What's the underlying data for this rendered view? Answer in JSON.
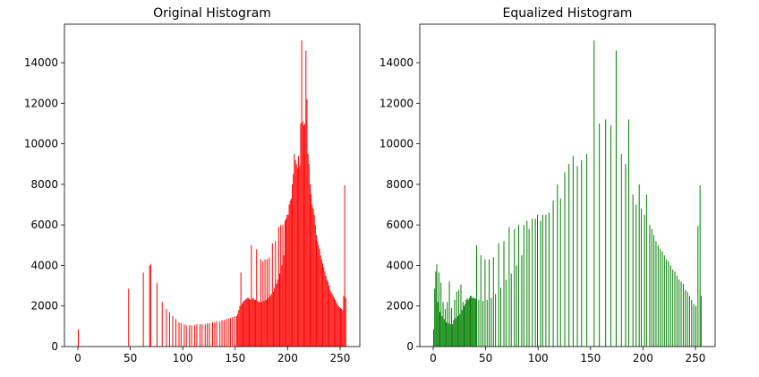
{
  "chart_data": [
    {
      "type": "bar",
      "title": "Original Histogram",
      "color": "red",
      "x": [
        0,
        48,
        62,
        68,
        69,
        75,
        80,
        84,
        87,
        90,
        93,
        96,
        98,
        101,
        103,
        106,
        108,
        111,
        113,
        116,
        118,
        121,
        123,
        125,
        128,
        130,
        132,
        135,
        137,
        139,
        141,
        143,
        145,
        147,
        149,
        151,
        152,
        153,
        154,
        155,
        156,
        157,
        158,
        159,
        160,
        161,
        162,
        163,
        164,
        165,
        166,
        167,
        168,
        169,
        170,
        171,
        172,
        173,
        174,
        175,
        176,
        177,
        178,
        179,
        180,
        181,
        182,
        183,
        184,
        185,
        186,
        187,
        188,
        189,
        190,
        191,
        192,
        193,
        194,
        195,
        196,
        197,
        198,
        199,
        200,
        201,
        202,
        203,
        204,
        205,
        206,
        207,
        208,
        209,
        210,
        211,
        212,
        213,
        214,
        215,
        216,
        217,
        218,
        219,
        220,
        221,
        222,
        223,
        224,
        225,
        226,
        227,
        228,
        229,
        230,
        231,
        232,
        233,
        234,
        235,
        236,
        237,
        238,
        239,
        240,
        241,
        242,
        243,
        244,
        245,
        246,
        247,
        248,
        249,
        250,
        251,
        252,
        253,
        254,
        255
      ],
      "values": [
        850,
        2850,
        3650,
        4000,
        4050,
        3150,
        2200,
        1850,
        1700,
        1500,
        1350,
        1200,
        1150,
        1100,
        1050,
        1050,
        1050,
        1050,
        1100,
        1100,
        1100,
        1100,
        1150,
        1150,
        1200,
        1200,
        1250,
        1250,
        1300,
        1300,
        1350,
        1400,
        1400,
        1450,
        1500,
        1500,
        1600,
        1800,
        2000,
        3650,
        2100,
        2200,
        2250,
        2300,
        2350,
        2400,
        2400,
        2350,
        2300,
        5000,
        2350,
        2400,
        2300,
        2300,
        4800,
        2250,
        2200,
        2200,
        4300,
        2200,
        4200,
        2250,
        4300,
        2300,
        4300,
        2400,
        4400,
        2500,
        2600,
        5100,
        2700,
        2900,
        5200,
        3100,
        3300,
        5900,
        3600,
        6000,
        4000,
        6000,
        4500,
        6200,
        6300,
        6500,
        6500,
        7000,
        7200,
        7300,
        8000,
        8500,
        9500,
        9200,
        9000,
        8800,
        9400,
        8900,
        11000,
        15100,
        11100,
        10900,
        11000,
        14600,
        12200,
        9500,
        9000,
        8000,
        7500,
        7000,
        6800,
        6500,
        6000,
        5500,
        5200,
        5000,
        4800,
        4500,
        4300,
        4100,
        3900,
        3700,
        3500,
        3300,
        3200,
        3000,
        2800,
        2700,
        2600,
        2500,
        2400,
        2300,
        2200,
        2100,
        2000,
        1950,
        1900,
        1850,
        1800,
        2500,
        7950,
        2400
      ],
      "xlim": [
        -12.8,
        268.8
      ],
      "ylim": [
        0,
        15900
      ],
      "xticks": [
        0,
        50,
        100,
        150,
        200,
        250
      ],
      "yticks": [
        0,
        2000,
        4000,
        6000,
        8000,
        10000,
        12000,
        14000
      ]
    },
    {
      "type": "bar",
      "title": "Equalized Histogram",
      "color": "green",
      "x": [
        0,
        1,
        2,
        3,
        4,
        5,
        6,
        7,
        8,
        9,
        10,
        11,
        12,
        13,
        14,
        15,
        16,
        17,
        18,
        19,
        20,
        21,
        22,
        23,
        24,
        25,
        26,
        27,
        28,
        29,
        30,
        31,
        32,
        33,
        34,
        35,
        36,
        37,
        38,
        39,
        40,
        41,
        43,
        45,
        47,
        49,
        51,
        53,
        55,
        57,
        59,
        62,
        64,
        67,
        69,
        72,
        74,
        77,
        79,
        81,
        84,
        86,
        89,
        91,
        94,
        97,
        99,
        102,
        104,
        107,
        110,
        114,
        118,
        121,
        125,
        129,
        133,
        137,
        141,
        146,
        153,
        158,
        164,
        169,
        174,
        179,
        183,
        186,
        190,
        193,
        196,
        198,
        201,
        203,
        206,
        208,
        210,
        212,
        214,
        216,
        218,
        220,
        222,
        224,
        226,
        228,
        230,
        232,
        234,
        236,
        238,
        240,
        242,
        244,
        246,
        248,
        250,
        252,
        254,
        255
      ],
      "values": [
        850,
        2850,
        3700,
        4050,
        2200,
        3650,
        1700,
        3150,
        1500,
        2200,
        1350,
        1850,
        1200,
        2200,
        1150,
        3200,
        1100,
        1900,
        1100,
        1300,
        2300,
        1400,
        2700,
        1500,
        2800,
        1600,
        3050,
        1800,
        2200,
        2000,
        2100,
        2300,
        2400,
        2300,
        2400,
        2500,
        2500,
        2400,
        2400,
        2400,
        2350,
        5000,
        2300,
        4500,
        2250,
        4300,
        2300,
        4300,
        2400,
        4400,
        2600,
        5100,
        2900,
        5200,
        3300,
        5900,
        3600,
        5800,
        4000,
        6000,
        4500,
        6000,
        6200,
        5800,
        6300,
        6300,
        6500,
        6200,
        6500,
        6500,
        6600,
        7200,
        8000,
        7300,
        8600,
        9000,
        9400,
        8900,
        9200,
        9500,
        15100,
        11000,
        11200,
        10900,
        14600,
        9500,
        9000,
        11200,
        7500,
        7000,
        8000,
        6800,
        6500,
        7500,
        6000,
        5800,
        5500,
        5200,
        5000,
        4800,
        4700,
        4500,
        4300,
        4200,
        4000,
        3800,
        3700,
        3500,
        3300,
        3200,
        3100,
        2800,
        2700,
        2500,
        2300,
        2100,
        2000,
        5950,
        7950,
        2500
      ],
      "xlim": [
        -12.8,
        268.8
      ],
      "ylim": [
        0,
        15900
      ],
      "xticks": [
        0,
        50,
        100,
        150,
        200,
        250
      ],
      "yticks": [
        0,
        2000,
        4000,
        6000,
        8000,
        10000,
        12000,
        14000
      ]
    }
  ]
}
